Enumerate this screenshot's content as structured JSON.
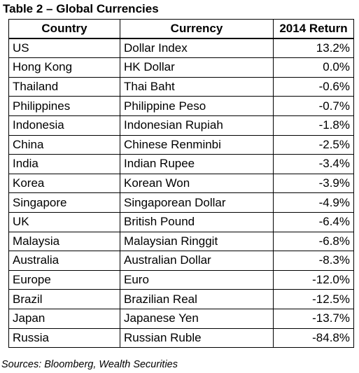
{
  "title": "Table 2 – Global Currencies",
  "table": {
    "headers": [
      "Country",
      "Currency",
      "2014 Return"
    ],
    "rows": [
      [
        "US",
        "Dollar Index",
        "13.2%"
      ],
      [
        "Hong Kong",
        "HK Dollar",
        "0.0%"
      ],
      [
        "Thailand",
        "Thai Baht",
        "-0.6%"
      ],
      [
        "Philippines",
        "Philippine Peso",
        "-0.7%"
      ],
      [
        "Indonesia",
        "Indonesian Rupiah",
        "-1.8%"
      ],
      [
        "China",
        "Chinese Renminbi",
        "-2.5%"
      ],
      [
        "India",
        "Indian Rupee",
        "-3.4%"
      ],
      [
        "Korea",
        "Korean Won",
        "-3.9%"
      ],
      [
        "Singapore",
        "Singaporean Dollar",
        "-4.9%"
      ],
      [
        "UK",
        "British Pound",
        "-6.4%"
      ],
      [
        "Malaysia",
        "Malaysian Ringgit",
        "-6.8%"
      ],
      [
        "Australia",
        "Australian Dollar",
        "-8.3%"
      ],
      [
        "Europe",
        "Euro",
        "-12.0%"
      ],
      [
        "Brazil",
        "Brazilian Real",
        "-12.5%"
      ],
      [
        "Japan",
        "Japanese Yen",
        "-13.7%"
      ],
      [
        "Russia",
        "Russian Ruble",
        "-84.8%"
      ]
    ]
  },
  "sources": "Sources: Bloomberg, Wealth Securities"
}
